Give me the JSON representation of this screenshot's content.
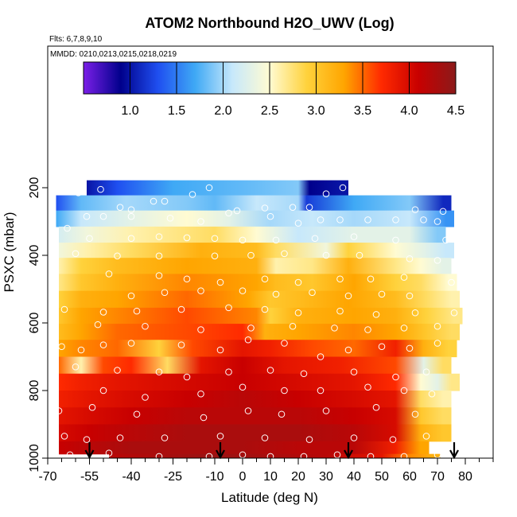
{
  "chart_data": {
    "type": "heatmap",
    "title": "ATOM2 Northbound H2O_UWV (Log)",
    "flights_note": "Flts: 6,7,8,9,10",
    "dates_note": "MMDD: 0210,0213,0215,0218,0219",
    "xlabel": "Latitude (deg N)",
    "ylabel": "PSXC (mbar)",
    "xlim": [
      -70,
      90
    ],
    "ylim": [
      1000,
      100
    ],
    "x_ticks": [
      -70,
      -55,
      -40,
      -25,
      -10,
      0,
      10,
      20,
      30,
      40,
      50,
      60,
      70,
      80
    ],
    "x_tick_labels": [
      "-70",
      "-55",
      "-40",
      "-25",
      "-10",
      "0",
      "10",
      "20",
      "30",
      "40",
      "50",
      "60",
      "70",
      "80"
    ],
    "y_ticks": [
      200,
      400,
      600,
      800,
      1000
    ],
    "y_tick_labels": [
      "200",
      "400",
      "600",
      "800",
      "1000"
    ],
    "colorbar": {
      "min": 0.5,
      "max": 4.5,
      "ticks": [
        1.0,
        1.5,
        2.0,
        2.5,
        3.0,
        3.5,
        4.0,
        4.5
      ],
      "tick_labels": [
        "1.0",
        "1.5",
        "2.0",
        "2.5",
        "3.0",
        "3.5",
        "4.0",
        "4.5"
      ],
      "colors": [
        "#7b1fe8",
        "#00008b",
        "#1f4ff0",
        "#3fa9f5",
        "#c7e8fb",
        "#fffbd2",
        "#ffd23c",
        "#ffa500",
        "#ff2a00",
        "#c80000",
        "#8b1a1a"
      ]
    },
    "profile_latitudes": [
      -55,
      -8,
      38,
      76
    ],
    "bands": [
      {
        "p": 200,
        "segments": [
          [
            -56,
            1.0
          ],
          [
            -45,
            1.3
          ],
          [
            -25,
            1.7
          ],
          [
            0,
            1.8
          ],
          [
            20,
            1.9
          ],
          [
            24,
            0.9
          ],
          [
            35,
            1.0
          ]
        ]
      },
      {
        "p": 245,
        "segments": [
          [
            -67,
            1.3
          ],
          [
            -58,
            1.8
          ],
          [
            -42,
            2.0
          ],
          [
            -20,
            1.9
          ],
          [
            -10,
            1.8
          ],
          [
            5,
            2.1
          ],
          [
            20,
            2.0
          ],
          [
            23,
            1.2
          ],
          [
            40,
            1.7
          ],
          [
            60,
            1.9
          ],
          [
            72,
            1.1
          ]
        ]
      },
      {
        "p": 290,
        "segments": [
          [
            -67,
            1.7
          ],
          [
            -58,
            2.1
          ],
          [
            -40,
            2.3
          ],
          [
            -20,
            2.5
          ],
          [
            -5,
            2.3
          ],
          [
            10,
            2.0
          ],
          [
            25,
            2.1
          ],
          [
            40,
            2.0
          ],
          [
            60,
            2.1
          ],
          [
            73,
            1.6
          ]
        ]
      },
      {
        "p": 340,
        "segments": [
          [
            -66,
            2.2
          ],
          [
            -56,
            2.4
          ],
          [
            -40,
            2.6
          ],
          [
            -10,
            2.8
          ],
          [
            5,
            2.5
          ],
          [
            20,
            2.1
          ],
          [
            40,
            2.3
          ],
          [
            60,
            2.3
          ],
          [
            70,
            1.9
          ]
        ]
      },
      {
        "p": 385,
        "segments": [
          [
            -66,
            2.4
          ],
          [
            -56,
            2.6
          ],
          [
            -40,
            2.8
          ],
          [
            -15,
            3.2
          ],
          [
            5,
            3.1
          ],
          [
            12,
            2.8
          ],
          [
            30,
            2.4
          ],
          [
            38,
            2.9
          ],
          [
            55,
            2.5
          ],
          [
            65,
            2.3
          ],
          [
            73,
            2.1
          ]
        ]
      },
      {
        "p": 430,
        "segments": [
          [
            -66,
            2.6
          ],
          [
            -58,
            2.9
          ],
          [
            -45,
            3.1
          ],
          [
            -20,
            3.3
          ],
          [
            5,
            3.2
          ],
          [
            12,
            2.6
          ],
          [
            25,
            2.7
          ],
          [
            38,
            3.2
          ],
          [
            55,
            2.7
          ],
          [
            64,
            2.5
          ],
          [
            72,
            2.3
          ]
        ]
      },
      {
        "p": 480,
        "segments": [
          [
            -66,
            2.7
          ],
          [
            -58,
            3.0
          ],
          [
            -45,
            3.2
          ],
          [
            -20,
            3.4
          ],
          [
            5,
            3.3
          ],
          [
            12,
            3.1
          ],
          [
            25,
            3.0
          ],
          [
            40,
            3.3
          ],
          [
            55,
            2.9
          ],
          [
            64,
            2.8
          ],
          [
            74,
            2.5
          ]
        ]
      },
      {
        "p": 530,
        "segments": [
          [
            -66,
            2.9
          ],
          [
            -58,
            3.2
          ],
          [
            -45,
            3.3
          ],
          [
            -20,
            3.5
          ],
          [
            2,
            3.3
          ],
          [
            10,
            3.0
          ],
          [
            20,
            3.1
          ],
          [
            38,
            3.3
          ],
          [
            55,
            3.1
          ],
          [
            66,
            2.8
          ],
          [
            75,
            2.6
          ]
        ]
      },
      {
        "p": 580,
        "segments": [
          [
            -66,
            3.0
          ],
          [
            -58,
            3.3
          ],
          [
            -45,
            3.4
          ],
          [
            -20,
            3.6
          ],
          [
            5,
            3.4
          ],
          [
            10,
            2.9
          ],
          [
            20,
            3.2
          ],
          [
            40,
            3.3
          ],
          [
            55,
            3.2
          ],
          [
            66,
            2.9
          ],
          [
            76,
            2.7
          ]
        ]
      },
      {
        "p": 625,
        "segments": [
          [
            -66,
            3.1
          ],
          [
            -58,
            3.3
          ],
          [
            -45,
            3.5
          ],
          [
            -20,
            3.6
          ],
          [
            0,
            3.7
          ],
          [
            8,
            3.2
          ],
          [
            20,
            3.3
          ],
          [
            40,
            3.4
          ],
          [
            55,
            3.3
          ],
          [
            66,
            3.0
          ],
          [
            75,
            2.8
          ]
        ]
      },
      {
        "p": 675,
        "segments": [
          [
            -66,
            3.3
          ],
          [
            -58,
            3.4
          ],
          [
            -45,
            3.5
          ],
          [
            -30,
            2.9
          ],
          [
            -18,
            3.6
          ],
          [
            0,
            3.9
          ],
          [
            10,
            3.8
          ],
          [
            25,
            3.6
          ],
          [
            40,
            3.5
          ],
          [
            55,
            3.8
          ],
          [
            65,
            3.2
          ],
          [
            74,
            2.9
          ]
        ]
      },
      {
        "p": 725,
        "segments": [
          [
            -66,
            3.5
          ],
          [
            -58,
            2.6
          ],
          [
            -50,
            3.6
          ],
          [
            -40,
            3.7
          ],
          [
            -27,
            2.8
          ],
          [
            -15,
            3.9
          ],
          [
            0,
            4.1
          ],
          [
            15,
            3.9
          ],
          [
            35,
            3.8
          ],
          [
            55,
            3.6
          ],
          [
            65,
            2.3
          ],
          [
            72,
            2.8
          ]
        ]
      },
      {
        "p": 775,
        "segments": [
          [
            -66,
            3.7
          ],
          [
            -58,
            3.8
          ],
          [
            -45,
            3.9
          ],
          [
            -25,
            4.0
          ],
          [
            0,
            4.1
          ],
          [
            20,
            4.0
          ],
          [
            40,
            3.9
          ],
          [
            55,
            3.7
          ],
          [
            64,
            2.5
          ],
          [
            70,
            2.3
          ],
          [
            75,
            2.7
          ]
        ]
      },
      {
        "p": 825,
        "segments": [
          [
            -66,
            3.8
          ],
          [
            -55,
            3.9
          ],
          [
            -40,
            4.0
          ],
          [
            -20,
            4.1
          ],
          [
            0,
            4.2
          ],
          [
            20,
            4.1
          ],
          [
            40,
            4.0
          ],
          [
            55,
            3.9
          ],
          [
            64,
            2.8
          ],
          [
            72,
            2.6
          ]
        ]
      },
      {
        "p": 875,
        "segments": [
          [
            -66,
            3.9
          ],
          [
            -55,
            4.0
          ],
          [
            -40,
            4.1
          ],
          [
            -20,
            4.2
          ],
          [
            0,
            4.2
          ],
          [
            20,
            4.2
          ],
          [
            40,
            4.1
          ],
          [
            55,
            4.0
          ],
          [
            64,
            3.0
          ],
          [
            72,
            2.8
          ]
        ]
      },
      {
        "p": 925,
        "segments": [
          [
            -66,
            4.0
          ],
          [
            -55,
            4.1
          ],
          [
            -40,
            4.2
          ],
          [
            -20,
            4.3
          ],
          [
            0,
            4.3
          ],
          [
            20,
            4.3
          ],
          [
            40,
            4.2
          ],
          [
            55,
            4.0
          ],
          [
            64,
            3.2
          ],
          [
            72,
            3.0
          ]
        ]
      },
      {
        "p": 975,
        "segments": [
          [
            -66,
            4.1
          ],
          [
            -55,
            4.2
          ],
          [
            -40,
            4.3
          ],
          [
            -20,
            4.3
          ],
          [
            0,
            4.3
          ],
          [
            20,
            4.2
          ],
          [
            40,
            4.2
          ],
          [
            55,
            3.8
          ],
          [
            64,
            3.3
          ]
        ]
      },
      {
        "p": 1000,
        "segments": [
          [
            -48,
            4.2
          ],
          [
            -30,
            4.3
          ],
          [
            -10,
            4.4
          ],
          [
            10,
            4.3
          ],
          [
            30,
            4.2
          ],
          [
            50,
            3.9
          ],
          [
            60,
            3.4
          ],
          [
            68,
            3.2
          ]
        ]
      }
    ],
    "sample_points": [
      [
        -65,
        200
      ],
      [
        -59,
        215
      ],
      [
        -51,
        205
      ],
      [
        -44,
        258
      ],
      [
        -40,
        265
      ],
      [
        -32,
        240
      ],
      [
        -28,
        240
      ],
      [
        -18,
        220
      ],
      [
        -12,
        200
      ],
      [
        -2,
        268
      ],
      [
        8,
        260
      ],
      [
        18,
        258
      ],
      [
        24,
        258
      ],
      [
        36,
        200
      ],
      [
        30,
        218
      ],
      [
        62,
        265
      ],
      [
        72,
        270
      ],
      [
        -63,
        320
      ],
      [
        -56,
        285
      ],
      [
        -50,
        285
      ],
      [
        -40,
        285
      ],
      [
        -26,
        290
      ],
      [
        -15,
        300
      ],
      [
        -5,
        275
      ],
      [
        10,
        285
      ],
      [
        20,
        305
      ],
      [
        28,
        295
      ],
      [
        35,
        295
      ],
      [
        45,
        295
      ],
      [
        55,
        295
      ],
      [
        65,
        295
      ],
      [
        70,
        300
      ],
      [
        -55,
        350
      ],
      [
        -40,
        350
      ],
      [
        -30,
        345
      ],
      [
        -20,
        348
      ],
      [
        -10,
        350
      ],
      [
        0,
        355
      ],
      [
        12,
        355
      ],
      [
        26,
        350
      ],
      [
        40,
        345
      ],
      [
        55,
        355
      ],
      [
        73,
        355
      ],
      [
        -60,
        395
      ],
      [
        -45,
        402
      ],
      [
        -30,
        402
      ],
      [
        -10,
        402
      ],
      [
        3,
        400
      ],
      [
        15,
        395
      ],
      [
        30,
        400
      ],
      [
        42,
        400
      ],
      [
        60,
        410
      ],
      [
        70,
        415
      ],
      [
        -48,
        455
      ],
      [
        -30,
        460
      ],
      [
        -20,
        470
      ],
      [
        -8,
        480
      ],
      [
        8,
        470
      ],
      [
        20,
        480
      ],
      [
        35,
        470
      ],
      [
        46,
        470
      ],
      [
        58,
        465
      ],
      [
        75,
        480
      ],
      [
        -40,
        520
      ],
      [
        -28,
        510
      ],
      [
        -15,
        505
      ],
      [
        0,
        505
      ],
      [
        12,
        515
      ],
      [
        25,
        510
      ],
      [
        38,
        520
      ],
      [
        50,
        515
      ],
      [
        60,
        520
      ],
      [
        -64,
        560
      ],
      [
        -50,
        568
      ],
      [
        -38,
        565
      ],
      [
        -22,
        560
      ],
      [
        -5,
        555
      ],
      [
        8,
        560
      ],
      [
        20,
        570
      ],
      [
        35,
        565
      ],
      [
        48,
        575
      ],
      [
        62,
        570
      ],
      [
        76,
        570
      ],
      [
        -52,
        605
      ],
      [
        -35,
        610
      ],
      [
        -15,
        620
      ],
      [
        3,
        615
      ],
      [
        18,
        610
      ],
      [
        33,
        615
      ],
      [
        45,
        620
      ],
      [
        58,
        615
      ],
      [
        70,
        610
      ],
      [
        -65,
        670
      ],
      [
        -58,
        680
      ],
      [
        -50,
        665
      ],
      [
        -40,
        660
      ],
      [
        -22,
        665
      ],
      [
        -8,
        680
      ],
      [
        2,
        650
      ],
      [
        15,
        660
      ],
      [
        28,
        700
      ],
      [
        38,
        680
      ],
      [
        50,
        670
      ],
      [
        60,
        675
      ],
      [
        70,
        660
      ],
      [
        -60,
        730
      ],
      [
        -45,
        740
      ],
      [
        -30,
        745
      ],
      [
        -20,
        760
      ],
      [
        -5,
        745
      ],
      [
        10,
        740
      ],
      [
        22,
        750
      ],
      [
        40,
        745
      ],
      [
        55,
        760
      ],
      [
        66,
        745
      ],
      [
        -50,
        800
      ],
      [
        -35,
        820
      ],
      [
        -15,
        810
      ],
      [
        0,
        790
      ],
      [
        15,
        800
      ],
      [
        28,
        800
      ],
      [
        45,
        790
      ],
      [
        58,
        800
      ],
      [
        68,
        810
      ],
      [
        -66,
        860
      ],
      [
        -54,
        850
      ],
      [
        -38,
        870
      ],
      [
        -14,
        880
      ],
      [
        2,
        860
      ],
      [
        14,
        870
      ],
      [
        30,
        860
      ],
      [
        48,
        850
      ],
      [
        62,
        870
      ],
      [
        -64,
        935
      ],
      [
        -56,
        945
      ],
      [
        -44,
        940
      ],
      [
        -28,
        940
      ],
      [
        -8,
        935
      ],
      [
        8,
        940
      ],
      [
        24,
        945
      ],
      [
        40,
        940
      ],
      [
        54,
        945
      ],
      [
        66,
        935
      ],
      [
        -62,
        990
      ],
      [
        -48,
        985
      ],
      [
        -30,
        995
      ],
      [
        -12,
        995
      ],
      [
        0,
        990
      ],
      [
        10,
        995
      ],
      [
        22,
        995
      ],
      [
        34,
        990
      ],
      [
        46,
        995
      ],
      [
        58,
        995
      ],
      [
        70,
        990
      ]
    ]
  }
}
